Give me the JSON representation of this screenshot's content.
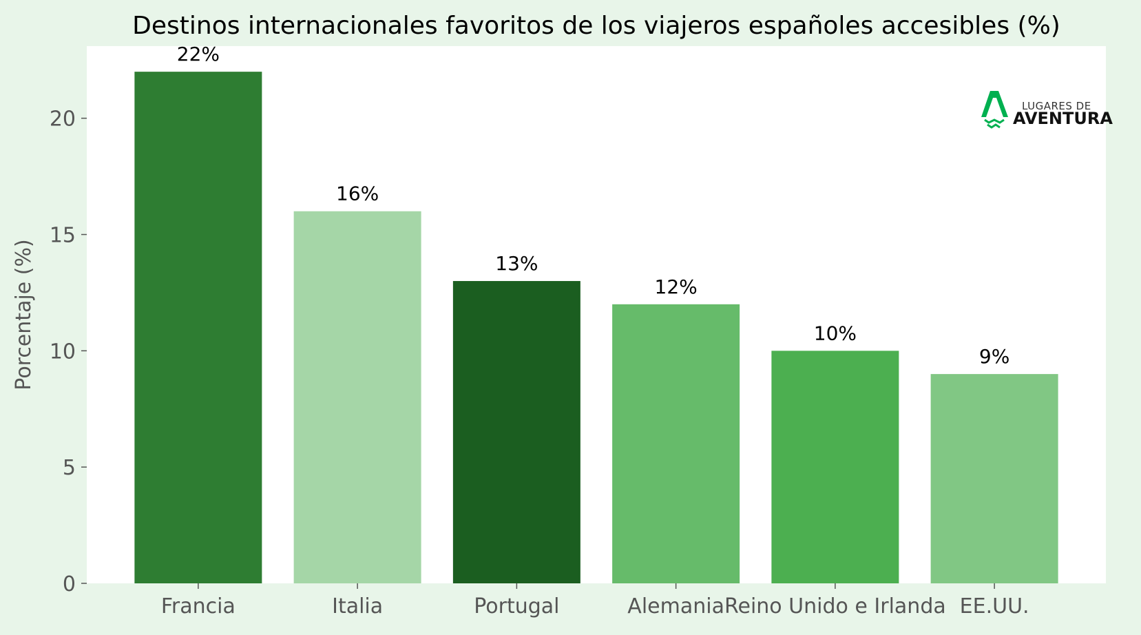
{
  "chart_data": {
    "type": "bar",
    "title": "Destinos internacionales favoritos de los viajeros españoles accesibles (%)",
    "xlabel": "",
    "ylabel": "Porcentaje (%)",
    "categories": [
      "Francia",
      "Italia",
      "Portugal",
      "Alemania",
      "Reino Unido e Irlanda",
      "EE.UU."
    ],
    "values": [
      22,
      16,
      13,
      12,
      10,
      9
    ],
    "value_labels": [
      "22%",
      "16%",
      "13%",
      "12%",
      "10%",
      "9%"
    ],
    "bar_colors": [
      "#2e7d32",
      "#a5d6a7",
      "#1b5e20",
      "#66bb6a",
      "#4caf50",
      "#81c784"
    ],
    "ylim": [
      0,
      23.1
    ],
    "yticks": [
      0,
      5,
      10,
      15,
      20
    ],
    "grid": false,
    "legend": "none"
  },
  "logo": {
    "line1": "LUGARES DE",
    "line2": "AVENTURA",
    "icon": "mountain-logo-icon",
    "color": "#00b050"
  },
  "colors": {
    "page_background": "#e8f5e9",
    "plot_background": "#ffffff",
    "axis_text": "#555555"
  }
}
